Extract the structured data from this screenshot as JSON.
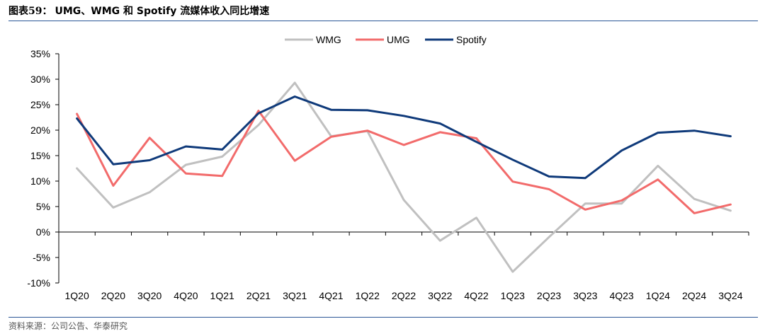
{
  "title": {
    "prefix": "图表59：",
    "text": "UMG、WMG 和 Spotify 流媒体收入同比增速"
  },
  "source": "资料来源：公司公告、华泰研究",
  "colors": {
    "WMG": "#c0c0c0",
    "UMG": "#f26b6b",
    "Spotify": "#0f3a7a",
    "axis": "#000000",
    "rule": "#2b5797"
  },
  "chart_data": {
    "type": "line",
    "x": [
      "1Q20",
      "2Q20",
      "3Q20",
      "4Q20",
      "1Q21",
      "2Q21",
      "3Q21",
      "4Q21",
      "1Q22",
      "2Q22",
      "3Q22",
      "4Q22",
      "1Q23",
      "2Q23",
      "3Q23",
      "4Q23",
      "1Q24",
      "2Q24",
      "3Q24"
    ],
    "ylim": [
      -10,
      35
    ],
    "yticks": [
      -10,
      -5,
      0,
      5,
      10,
      15,
      20,
      25,
      30,
      35
    ],
    "ytick_labels": [
      "-10%",
      "-5%",
      "0%",
      "5%",
      "10%",
      "15%",
      "20%",
      "25%",
      "30%",
      "35%"
    ],
    "legend_position": "top-center",
    "grid": false,
    "series": [
      {
        "name": "WMG",
        "values": [
          12.5,
          4.8,
          7.8,
          13.2,
          14.8,
          21.0,
          29.3,
          18.8,
          19.8,
          6.3,
          -1.7,
          2.8,
          -7.8,
          -1.0,
          5.6,
          5.6,
          13.0,
          6.5,
          4.2
        ]
      },
      {
        "name": "UMG",
        "values": [
          23.2,
          9.1,
          18.5,
          11.5,
          11.0,
          23.8,
          14.0,
          18.7,
          19.9,
          17.1,
          19.6,
          18.4,
          9.9,
          8.4,
          4.4,
          6.2,
          10.3,
          3.7,
          5.4
        ]
      },
      {
        "name": "Spotify",
        "values": [
          22.3,
          13.3,
          14.1,
          16.8,
          16.2,
          23.3,
          26.6,
          24.0,
          23.9,
          22.8,
          21.3,
          17.7,
          14.2,
          10.9,
          10.6,
          16.0,
          19.5,
          19.9,
          18.8
        ]
      }
    ]
  }
}
